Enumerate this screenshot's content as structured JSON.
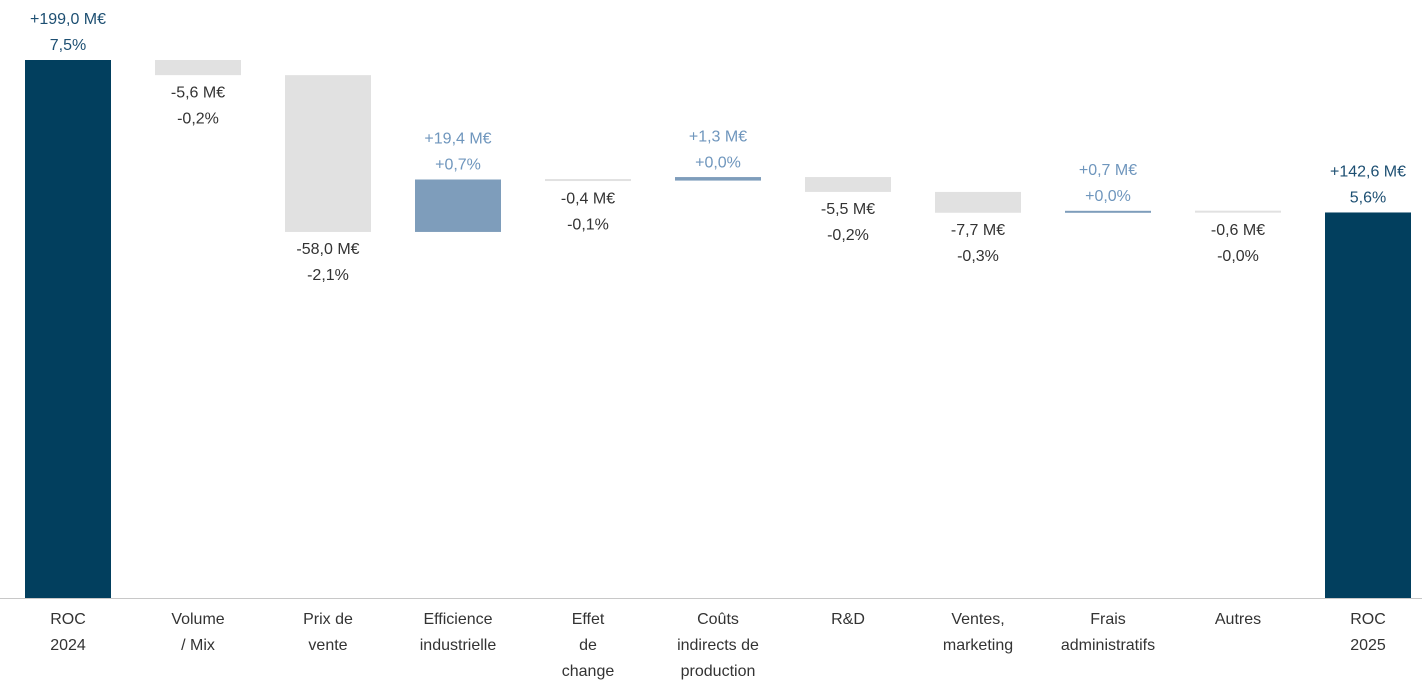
{
  "chart_data": {
    "type": "waterfall",
    "categories": [
      [
        "ROC",
        "2024"
      ],
      [
        "Volume",
        "/ Mix"
      ],
      [
        "Prix de",
        "vente"
      ],
      [
        "Efficience",
        "industrielle"
      ],
      [
        "Effet",
        "de",
        "change"
      ],
      [
        "Coûts",
        "indirects de",
        "production"
      ],
      [
        "R&D"
      ],
      [
        "Ventes,",
        "marketing"
      ],
      [
        "Frais",
        "administratifs"
      ],
      [
        "Autres"
      ],
      [
        "ROC",
        "2025"
      ]
    ],
    "measure": [
      "total",
      "relative",
      "relative",
      "relative",
      "relative",
      "relative",
      "relative",
      "relative",
      "relative",
      "relative",
      "total"
    ],
    "values": [
      199.0,
      -5.6,
      -58.0,
      19.4,
      -0.4,
      1.3,
      -5.5,
      -7.7,
      0.7,
      -0.6,
      142.6
    ],
    "value_labels": [
      "+199,0 M€",
      "-5,6 M€",
      "-58,0 M€",
      "+19,4 M€",
      "-0,4 M€",
      "+1,3 M€",
      "-5,5 M€",
      "-7,7 M€",
      "+0,7 M€",
      "-0,6 M€",
      "+142,6 M€"
    ],
    "percent_labels": [
      "7,5%",
      "-0,2%",
      "-2,1%",
      "+0,7%",
      "-0,1%",
      "+0,0%",
      "-0,2%",
      "-0,3%",
      "+0,0%",
      "-0,0%",
      "5,6%"
    ],
    "colors": {
      "total": "#023f5e",
      "increase": "#7e9dbb",
      "decrease": "#e1e1e1"
    },
    "label_colors": {
      "total": "#1d4f72",
      "increase": "#6f96bd",
      "decrease": "#333333"
    }
  }
}
